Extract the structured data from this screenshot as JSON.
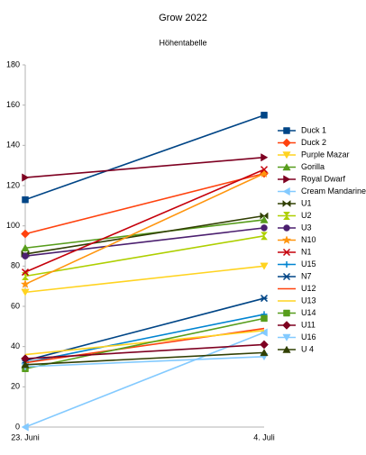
{
  "chart_data": {
    "type": "line",
    "title": "Grow 2022",
    "subtitle": "Höhentabelle",
    "categories": [
      "23. Juni",
      "4. Juli"
    ],
    "ylim": [
      0,
      180
    ],
    "yticks": [
      0,
      20,
      40,
      60,
      80,
      100,
      120,
      140,
      160,
      180
    ],
    "grid": false,
    "legend": "right",
    "series": [
      {
        "name": "Duck 1",
        "color": "#004586",
        "marker": "square",
        "values": [
          113,
          155
        ]
      },
      {
        "name": "Duck 2",
        "color": "#ff420e",
        "marker": "diamond",
        "values": [
          96,
          126
        ]
      },
      {
        "name": "Purple Mazar",
        "color": "#ffd320",
        "marker": "triangle-down",
        "values": [
          67,
          80
        ]
      },
      {
        "name": "Gorilla",
        "color": "#579d1c",
        "marker": "triangle-up",
        "values": [
          89,
          103
        ]
      },
      {
        "name": "Royal Dwarf",
        "color": "#7e0021",
        "marker": "triangle-right",
        "values": [
          124,
          134
        ]
      },
      {
        "name": "Cream Mandarine",
        "color": "#83caff",
        "marker": "triangle-left",
        "values": [
          0,
          47
        ]
      },
      {
        "name": "U1",
        "color": "#314004",
        "marker": "bowtie",
        "values": [
          86,
          105
        ]
      },
      {
        "name": "U2",
        "color": "#aecf00",
        "marker": "hourglass",
        "values": [
          75,
          95
        ]
      },
      {
        "name": "U3",
        "color": "#4b1f6f",
        "marker": "circle",
        "values": [
          85,
          99
        ]
      },
      {
        "name": "N10",
        "color": "#ff950e",
        "marker": "star",
        "values": [
          71,
          126
        ]
      },
      {
        "name": "N1",
        "color": "#c5000b",
        "marker": "x",
        "values": [
          77,
          128
        ]
      },
      {
        "name": "U15",
        "color": "#0084d1",
        "marker": "plus",
        "values": [
          32,
          56
        ]
      },
      {
        "name": "N7",
        "color": "#004586",
        "marker": "asterisk",
        "values": [
          33,
          64
        ]
      },
      {
        "name": "U12",
        "color": "#ff420e",
        "marker": "none",
        "values": [
          32,
          49
        ]
      },
      {
        "name": "U13",
        "color": "#ffd320",
        "marker": "none",
        "values": [
          36,
          48
        ]
      },
      {
        "name": "U14",
        "color": "#579d1c",
        "marker": "square",
        "values": [
          29,
          54
        ]
      },
      {
        "name": "U11",
        "color": "#7e0021",
        "marker": "diamond",
        "values": [
          34,
          41
        ]
      },
      {
        "name": "U16",
        "color": "#83caff",
        "marker": "triangle-down",
        "values": [
          30,
          35
        ]
      },
      {
        "name": "U 4",
        "color": "#314004",
        "marker": "triangle-up",
        "values": [
          31,
          37
        ]
      }
    ]
  }
}
